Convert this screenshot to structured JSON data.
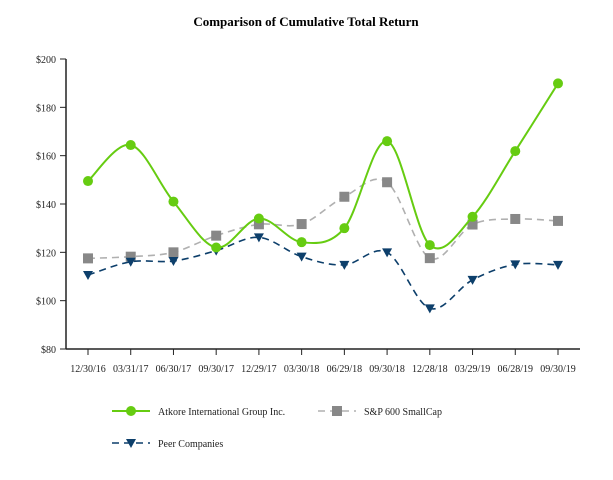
{
  "chart_data": {
    "type": "line",
    "title": "Comparison of Cumulative Total Return",
    "xlabel": "",
    "ylabel": "",
    "categories": [
      "12/30/16",
      "03/31/17",
      "06/30/17",
      "09/30/17",
      "12/29/17",
      "03/30/18",
      "06/29/18",
      "09/30/18",
      "12/28/18",
      "03/29/19",
      "06/28/19",
      "09/30/19"
    ],
    "ylim": [
      80,
      200
    ],
    "yticks": [
      80,
      100,
      120,
      140,
      160,
      180,
      200
    ],
    "ytick_labels": [
      "$80",
      "$100",
      "$120",
      "$140",
      "$160",
      "$180",
      "$200"
    ],
    "grid": false,
    "legend_placement": "bottom",
    "series": [
      {
        "name": "Atkore International Group Inc.",
        "color": "#66cc11",
        "marker": "circle",
        "line": "solid",
        "values": [
          149.5,
          164.4,
          141.0,
          122.0,
          134.0,
          124.2,
          130.0,
          166.0,
          123.0,
          134.7,
          161.9,
          189.9
        ]
      },
      {
        "name": "S&P 600 SmallCap",
        "color": "#888888",
        "line_color": "#b0b0b0",
        "marker": "square",
        "line": "dashed",
        "values": [
          117.5,
          118.2,
          120.0,
          126.9,
          131.6,
          131.7,
          143.0,
          149.0,
          117.6,
          131.5,
          133.8,
          133.0
        ]
      },
      {
        "name": "Peer Companies",
        "color": "#0d3f6b",
        "marker": "triangle-down",
        "line": "dashed",
        "values": [
          110.6,
          116.1,
          116.4,
          120.7,
          126.2,
          118.2,
          114.8,
          120.0,
          96.8,
          108.6,
          115.0,
          114.8
        ]
      }
    ]
  }
}
